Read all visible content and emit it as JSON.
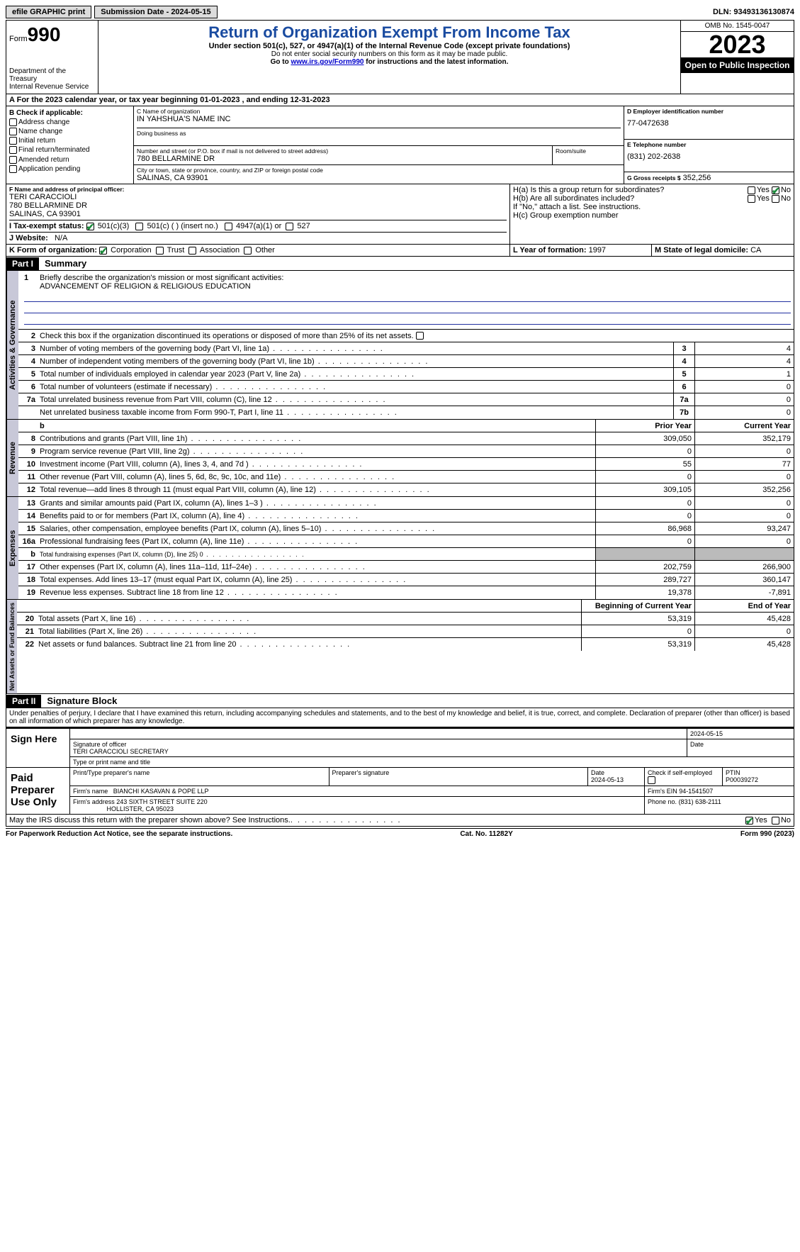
{
  "topbar": {
    "efile": "efile GRAPHIC print",
    "submission": "Submission Date - 2024-05-15",
    "dln": "DLN: 93493136130874"
  },
  "header": {
    "form_label": "Form",
    "form_no": "990",
    "dept": "Department of the Treasury",
    "irs": "Internal Revenue Service",
    "title": "Return of Organization Exempt From Income Tax",
    "line1": "Under section 501(c), 527, or 4947(a)(1) of the Internal Revenue Code (except private foundations)",
    "line2": "Do not enter social security numbers on this form as it may be made public.",
    "line3a": "Go to ",
    "line3_link": "www.irs.gov/Form990",
    "line3b": " for instructions and the latest information.",
    "omb": "OMB No. 1545-0047",
    "year": "2023",
    "open": "Open to Public Inspection"
  },
  "taxyear": "For the 2023 calendar year, or tax year beginning 01-01-2023    , and ending 12-31-2023",
  "sectionB": {
    "title": "B Check if applicable:",
    "items": [
      "Address change",
      "Name change",
      "Initial return",
      "Final return/terminated",
      "Amended return",
      "Application pending"
    ]
  },
  "sectionC": {
    "name_lbl": "C Name of organization",
    "name": "IN YAHSHUA'S NAME INC",
    "dba_lbl": "Doing business as",
    "addr_lbl": "Number and street (or P.O. box if mail is not delivered to street address)",
    "room_lbl": "Room/suite",
    "addr": "780 BELLARMINE DR",
    "city_lbl": "City or town, state or province, country, and ZIP or foreign postal code",
    "city": "SALINAS, CA  93901"
  },
  "sectionD": {
    "lbl": "D Employer identification number",
    "val": "77-0472638"
  },
  "sectionE": {
    "lbl": "E Telephone number",
    "val": "(831) 202-2638"
  },
  "sectionG": {
    "lbl": "G Gross receipts $",
    "val": "352,256"
  },
  "sectionF": {
    "lbl": "F  Name and address of principal officer:",
    "name": "TERI CARACCIOLI",
    "addr1": "780 BELLARMINE DR",
    "addr2": "SALINAS, CA  93901"
  },
  "sectionH": {
    "a": "H(a)  Is this a group return for subordinates?",
    "b": "H(b)  Are all subordinates included?",
    "b_note": "If \"No,\" attach a list. See instructions.",
    "c": "H(c)  Group exemption number",
    "yes": "Yes",
    "no": "No"
  },
  "sectionI": {
    "lbl": "I   Tax-exempt status:",
    "opts": [
      "501(c)(3)",
      "501(c) (  ) (insert no.)",
      "4947(a)(1) or",
      "527"
    ]
  },
  "sectionJ": {
    "lbl": "J   Website:",
    "val": "N/A"
  },
  "sectionK": {
    "lbl": "K Form of organization:",
    "opts": [
      "Corporation",
      "Trust",
      "Association",
      "Other"
    ]
  },
  "sectionL": {
    "lbl": "L Year of formation:",
    "val": "1997"
  },
  "sectionM": {
    "lbl": "M State of legal domicile:",
    "val": "CA"
  },
  "part1": {
    "hdr": "Part I",
    "title": "Summary",
    "q1_lbl": "1",
    "q1": "Briefly describe the organization's mission or most significant activities:",
    "mission": "ADVANCEMENT OF RELIGION & RELIGIOUS EDUCATION",
    "q2": "Check this box        if the organization discontinued its operations or disposed of more than 25% of its net assets.",
    "vlabels": {
      "gov": "Activities & Governance",
      "rev": "Revenue",
      "exp": "Expenses",
      "net": "Net Assets or Fund Balances"
    },
    "cols": {
      "prior": "Prior Year",
      "current": "Current Year",
      "beg": "Beginning of Current Year",
      "end": "End of Year",
      "b": "b"
    },
    "gov_lines": [
      {
        "n": "3",
        "t": "Number of voting members of the governing body (Part VI, line 1a)",
        "box": "3",
        "v": "4"
      },
      {
        "n": "4",
        "t": "Number of independent voting members of the governing body (Part VI, line 1b)",
        "box": "4",
        "v": "4"
      },
      {
        "n": "5",
        "t": "Total number of individuals employed in calendar year 2023 (Part V, line 2a)",
        "box": "5",
        "v": "1"
      },
      {
        "n": "6",
        "t": "Total number of volunteers (estimate if necessary)",
        "box": "6",
        "v": "0"
      },
      {
        "n": "7a",
        "t": "Total unrelated business revenue from Part VIII, column (C), line 12",
        "box": "7a",
        "v": "0"
      },
      {
        "n": "",
        "t": "Net unrelated business taxable income from Form 990-T, Part I, line 11",
        "box": "7b",
        "v": "0"
      }
    ],
    "rev_lines": [
      {
        "n": "8",
        "t": "Contributions and grants (Part VIII, line 1h)",
        "p": "309,050",
        "c": "352,179"
      },
      {
        "n": "9",
        "t": "Program service revenue (Part VIII, line 2g)",
        "p": "0",
        "c": "0"
      },
      {
        "n": "10",
        "t": "Investment income (Part VIII, column (A), lines 3, 4, and 7d )",
        "p": "55",
        "c": "77"
      },
      {
        "n": "11",
        "t": "Other revenue (Part VIII, column (A), lines 5, 6d, 8c, 9c, 10c, and 11e)",
        "p": "0",
        "c": "0"
      },
      {
        "n": "12",
        "t": "Total revenue—add lines 8 through 11 (must equal Part VIII, column (A), line 12)",
        "p": "309,105",
        "c": "352,256"
      }
    ],
    "exp_lines": [
      {
        "n": "13",
        "t": "Grants and similar amounts paid (Part IX, column (A), lines 1–3 )",
        "p": "0",
        "c": "0"
      },
      {
        "n": "14",
        "t": "Benefits paid to or for members (Part IX, column (A), line 4)",
        "p": "0",
        "c": "0"
      },
      {
        "n": "15",
        "t": "Salaries, other compensation, employee benefits (Part IX, column (A), lines 5–10)",
        "p": "86,968",
        "c": "93,247"
      },
      {
        "n": "16a",
        "t": "Professional fundraising fees (Part IX, column (A), line 11e)",
        "p": "0",
        "c": "0"
      },
      {
        "n": "b",
        "t": "Total fundraising expenses (Part IX, column (D), line 25) 0",
        "p": "",
        "c": "",
        "grey": true,
        "sml": true
      },
      {
        "n": "17",
        "t": "Other expenses (Part IX, column (A), lines 11a–11d, 11f–24e)",
        "p": "202,759",
        "c": "266,900"
      },
      {
        "n": "18",
        "t": "Total expenses. Add lines 13–17 (must equal Part IX, column (A), line 25)",
        "p": "289,727",
        "c": "360,147"
      },
      {
        "n": "19",
        "t": "Revenue less expenses. Subtract line 18 from line 12",
        "p": "19,378",
        "c": "-7,891"
      }
    ],
    "net_lines": [
      {
        "n": "20",
        "t": "Total assets (Part X, line 16)",
        "p": "53,319",
        "c": "45,428"
      },
      {
        "n": "21",
        "t": "Total liabilities (Part X, line 26)",
        "p": "0",
        "c": "0"
      },
      {
        "n": "22",
        "t": "Net assets or fund balances. Subtract line 21 from line 20",
        "p": "53,319",
        "c": "45,428"
      }
    ]
  },
  "part2": {
    "hdr": "Part II",
    "title": "Signature Block",
    "decl": "Under penalties of perjury, I declare that I have examined this return, including accompanying schedules and statements, and to the best of my knowledge and belief, it is true, correct, and complete. Declaration of preparer (other than officer) is based on all information of which preparer has any knowledge.",
    "sign_here": "Sign Here",
    "sig_officer_lbl": "Signature of officer",
    "sig_officer": "TERI CARACCIOLI  SECRETARY",
    "sig_officer_type": "Type or print name and title",
    "date_lbl": "Date",
    "date1": "2024-05-15",
    "paid": "Paid Preparer Use Only",
    "prep_name_lbl": "Print/Type preparer's name",
    "prep_sig_lbl": "Preparer's signature",
    "prep_date_lbl": "Date",
    "prep_date": "2024-05-13",
    "self_emp": "Check        if self-employed",
    "ptin_lbl": "PTIN",
    "ptin": "P00039272",
    "firm_name_lbl": "Firm's name",
    "firm_name": "BIANCHI KASAVAN & POPE LLP",
    "firm_ein_lbl": "Firm's EIN",
    "firm_ein": "94-1541507",
    "firm_addr_lbl": "Firm's address",
    "firm_addr1": "243 SIXTH STREET SUITE 220",
    "firm_addr2": "HOLLISTER, CA  95023",
    "phone_lbl": "Phone no.",
    "phone": "(831) 638-2111",
    "discuss": "May the IRS discuss this return with the preparer shown above? See Instructions.",
    "yes": "Yes",
    "no": "No"
  },
  "footer": {
    "left": "For Paperwork Reduction Act Notice, see the separate instructions.",
    "mid": "Cat. No. 11282Y",
    "right": "Form 990 (2023)"
  }
}
